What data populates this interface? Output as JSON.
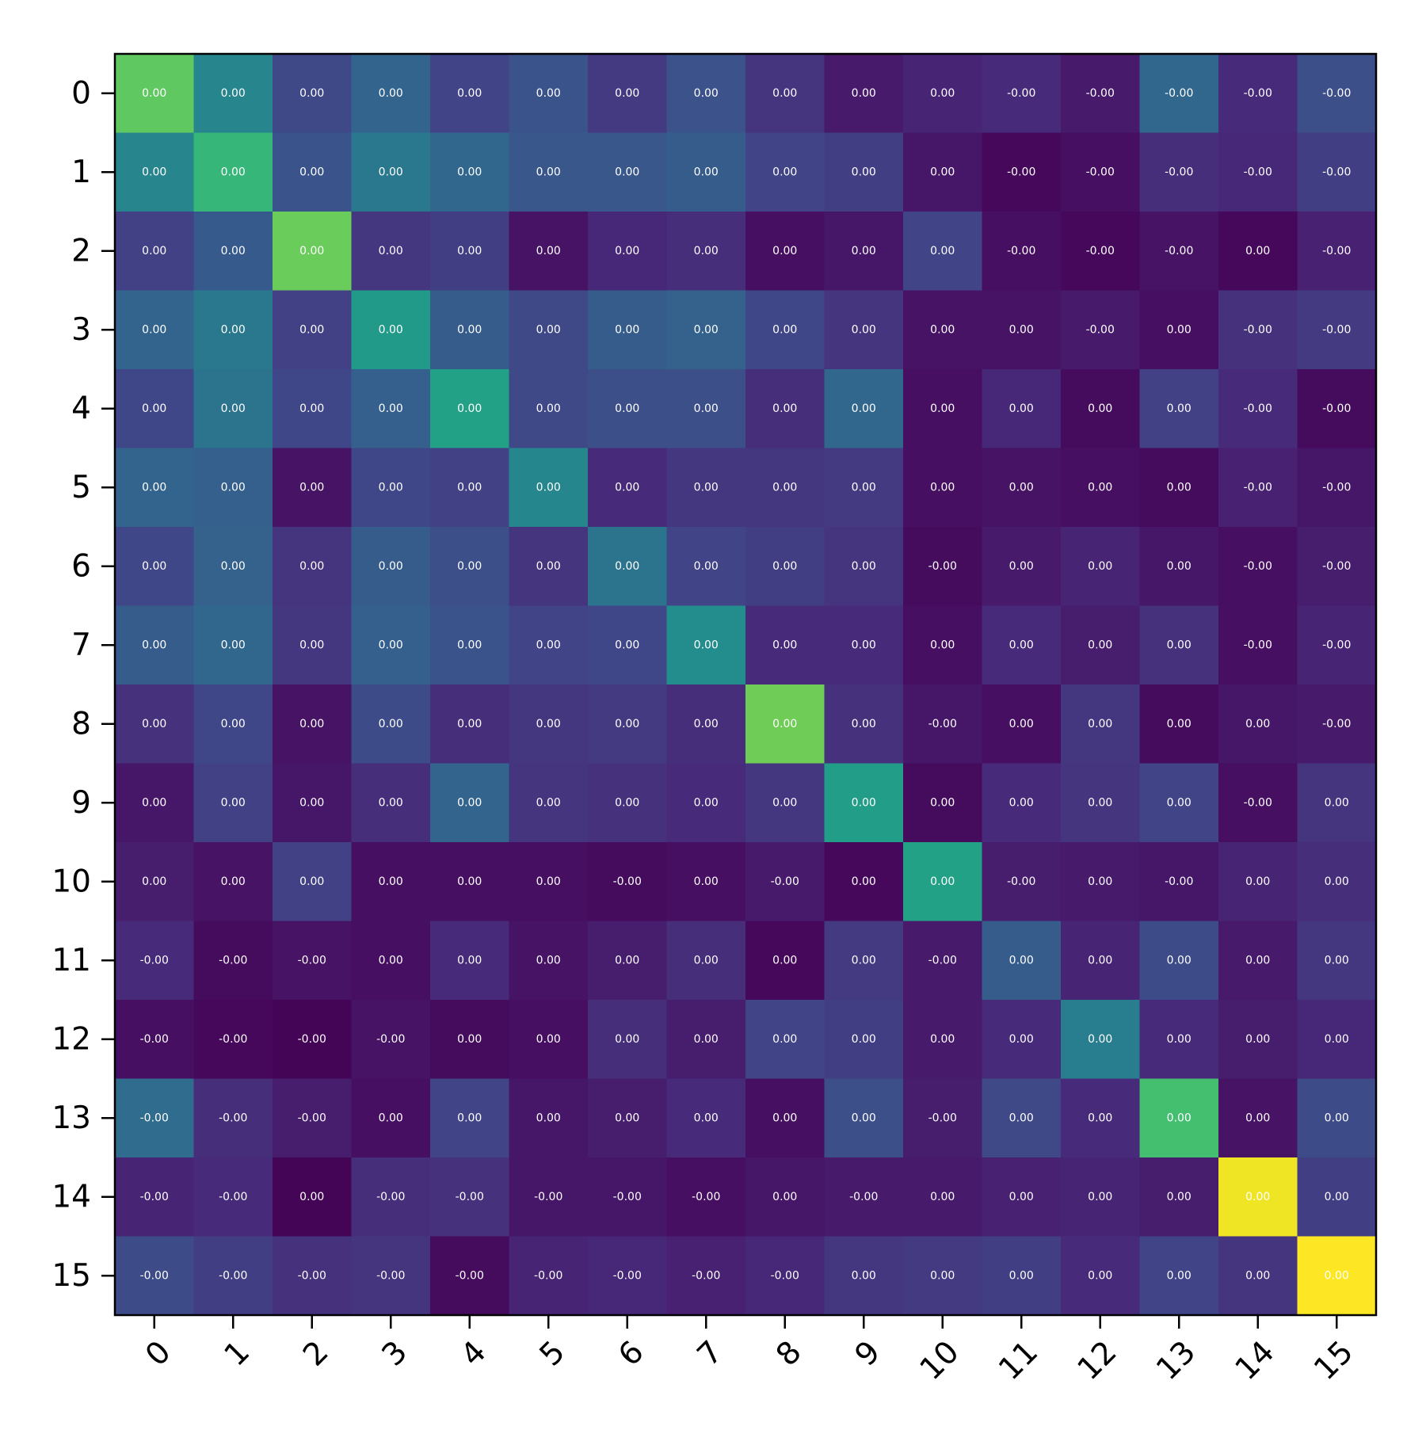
{
  "chart_data": {
    "type": "heatmap",
    "title": "",
    "xlabel": "",
    "ylabel": "",
    "x_tick_labels": [
      "0",
      "1",
      "2",
      "3",
      "4",
      "5",
      "6",
      "7",
      "8",
      "9",
      "10",
      "11",
      "12",
      "13",
      "14",
      "15"
    ],
    "y_tick_labels": [
      "0",
      "1",
      "2",
      "3",
      "4",
      "5",
      "6",
      "7",
      "8",
      "9",
      "10",
      "11",
      "12",
      "13",
      "14",
      "15"
    ],
    "colormap": "viridis",
    "color_scale_note": "cell colors are relative intensity on a 0-1 scale",
    "color_levels": [
      [
        0.75,
        0.45,
        0.22,
        0.32,
        0.2,
        0.26,
        0.17,
        0.25,
        0.15,
        0.07,
        0.1,
        0.12,
        0.07,
        0.33,
        0.12,
        0.24
      ],
      [
        0.45,
        0.66,
        0.26,
        0.4,
        0.33,
        0.27,
        0.27,
        0.29,
        0.2,
        0.18,
        0.06,
        0.02,
        0.04,
        0.13,
        0.11,
        0.18
      ],
      [
        0.19,
        0.28,
        0.77,
        0.16,
        0.18,
        0.05,
        0.11,
        0.13,
        0.04,
        0.06,
        0.2,
        0.04,
        0.02,
        0.05,
        0.02,
        0.09
      ],
      [
        0.32,
        0.4,
        0.19,
        0.54,
        0.29,
        0.22,
        0.29,
        0.31,
        0.21,
        0.15,
        0.05,
        0.05,
        0.07,
        0.04,
        0.14,
        0.17
      ],
      [
        0.21,
        0.38,
        0.21,
        0.3,
        0.57,
        0.22,
        0.24,
        0.24,
        0.13,
        0.33,
        0.04,
        0.11,
        0.03,
        0.19,
        0.12,
        0.03
      ],
      [
        0.32,
        0.3,
        0.05,
        0.21,
        0.19,
        0.46,
        0.12,
        0.16,
        0.16,
        0.17,
        0.04,
        0.05,
        0.04,
        0.03,
        0.09,
        0.06
      ],
      [
        0.21,
        0.31,
        0.15,
        0.29,
        0.24,
        0.15,
        0.38,
        0.2,
        0.18,
        0.15,
        0.03,
        0.07,
        0.1,
        0.06,
        0.04,
        0.08
      ],
      [
        0.29,
        0.33,
        0.16,
        0.3,
        0.26,
        0.2,
        0.21,
        0.48,
        0.12,
        0.12,
        0.04,
        0.12,
        0.08,
        0.14,
        0.04,
        0.1
      ],
      [
        0.14,
        0.21,
        0.05,
        0.23,
        0.13,
        0.16,
        0.17,
        0.13,
        0.78,
        0.14,
        0.06,
        0.04,
        0.16,
        0.03,
        0.06,
        0.07
      ],
      [
        0.06,
        0.19,
        0.06,
        0.13,
        0.32,
        0.15,
        0.14,
        0.12,
        0.16,
        0.55,
        0.03,
        0.12,
        0.15,
        0.2,
        0.04,
        0.15
      ],
      [
        0.08,
        0.05,
        0.19,
        0.04,
        0.04,
        0.04,
        0.03,
        0.04,
        0.07,
        0.02,
        0.57,
        0.08,
        0.07,
        0.06,
        0.1,
        0.13
      ],
      [
        0.12,
        0.03,
        0.05,
        0.04,
        0.12,
        0.05,
        0.08,
        0.13,
        0.02,
        0.17,
        0.07,
        0.29,
        0.1,
        0.23,
        0.07,
        0.16
      ],
      [
        0.04,
        0.02,
        0.01,
        0.05,
        0.03,
        0.04,
        0.13,
        0.08,
        0.2,
        0.18,
        0.07,
        0.12,
        0.42,
        0.12,
        0.08,
        0.11
      ],
      [
        0.35,
        0.13,
        0.08,
        0.04,
        0.2,
        0.06,
        0.08,
        0.12,
        0.04,
        0.24,
        0.08,
        0.22,
        0.12,
        0.7,
        0.05,
        0.23
      ],
      [
        0.1,
        0.12,
        0.01,
        0.13,
        0.14,
        0.06,
        0.06,
        0.04,
        0.06,
        0.07,
        0.07,
        0.09,
        0.1,
        0.08,
        0.98,
        0.18
      ],
      [
        0.23,
        0.18,
        0.14,
        0.15,
        0.03,
        0.1,
        0.11,
        0.09,
        0.11,
        0.16,
        0.17,
        0.18,
        0.12,
        0.2,
        0.15,
        1.0
      ]
    ],
    "cell_labels": [
      [
        "0.00",
        "0.00",
        "0.00",
        "0.00",
        "0.00",
        "0.00",
        "0.00",
        "0.00",
        "0.00",
        "0.00",
        "0.00",
        "-0.00",
        "-0.00",
        "-0.00",
        "-0.00",
        "-0.00"
      ],
      [
        "0.00",
        "0.00",
        "0.00",
        "0.00",
        "0.00",
        "0.00",
        "0.00",
        "0.00",
        "0.00",
        "0.00",
        "0.00",
        "-0.00",
        "-0.00",
        "-0.00",
        "-0.00",
        "-0.00"
      ],
      [
        "0.00",
        "0.00",
        "0.00",
        "0.00",
        "0.00",
        "0.00",
        "0.00",
        "0.00",
        "0.00",
        "0.00",
        "0.00",
        "-0.00",
        "-0.00",
        "-0.00",
        "0.00",
        "-0.00"
      ],
      [
        "0.00",
        "0.00",
        "0.00",
        "0.00",
        "0.00",
        "0.00",
        "0.00",
        "0.00",
        "0.00",
        "0.00",
        "0.00",
        "0.00",
        "-0.00",
        "0.00",
        "-0.00",
        "-0.00"
      ],
      [
        "0.00",
        "0.00",
        "0.00",
        "0.00",
        "0.00",
        "0.00",
        "0.00",
        "0.00",
        "0.00",
        "0.00",
        "0.00",
        "0.00",
        "0.00",
        "0.00",
        "-0.00",
        "-0.00"
      ],
      [
        "0.00",
        "0.00",
        "0.00",
        "0.00",
        "0.00",
        "0.00",
        "0.00",
        "0.00",
        "0.00",
        "0.00",
        "0.00",
        "0.00",
        "0.00",
        "0.00",
        "-0.00",
        "-0.00"
      ],
      [
        "0.00",
        "0.00",
        "0.00",
        "0.00",
        "0.00",
        "0.00",
        "0.00",
        "0.00",
        "0.00",
        "0.00",
        "-0.00",
        "0.00",
        "0.00",
        "0.00",
        "-0.00",
        "-0.00"
      ],
      [
        "0.00",
        "0.00",
        "0.00",
        "0.00",
        "0.00",
        "0.00",
        "0.00",
        "0.00",
        "0.00",
        "0.00",
        "0.00",
        "0.00",
        "0.00",
        "0.00",
        "-0.00",
        "-0.00"
      ],
      [
        "0.00",
        "0.00",
        "0.00",
        "0.00",
        "0.00",
        "0.00",
        "0.00",
        "0.00",
        "0.00",
        "0.00",
        "-0.00",
        "0.00",
        "0.00",
        "0.00",
        "0.00",
        "-0.00"
      ],
      [
        "0.00",
        "0.00",
        "0.00",
        "0.00",
        "0.00",
        "0.00",
        "0.00",
        "0.00",
        "0.00",
        "0.00",
        "0.00",
        "0.00",
        "0.00",
        "0.00",
        "-0.00",
        "0.00"
      ],
      [
        "0.00",
        "0.00",
        "0.00",
        "0.00",
        "0.00",
        "0.00",
        "-0.00",
        "0.00",
        "-0.00",
        "0.00",
        "0.00",
        "-0.00",
        "0.00",
        "-0.00",
        "0.00",
        "0.00"
      ],
      [
        "-0.00",
        "-0.00",
        "-0.00",
        "0.00",
        "0.00",
        "0.00",
        "0.00",
        "0.00",
        "0.00",
        "0.00",
        "-0.00",
        "0.00",
        "0.00",
        "0.00",
        "0.00",
        "0.00"
      ],
      [
        "-0.00",
        "-0.00",
        "-0.00",
        "-0.00",
        "0.00",
        "0.00",
        "0.00",
        "0.00",
        "0.00",
        "0.00",
        "0.00",
        "0.00",
        "0.00",
        "0.00",
        "0.00",
        "0.00"
      ],
      [
        "-0.00",
        "-0.00",
        "-0.00",
        "0.00",
        "0.00",
        "0.00",
        "0.00",
        "0.00",
        "0.00",
        "0.00",
        "-0.00",
        "0.00",
        "0.00",
        "0.00",
        "0.00",
        "0.00"
      ],
      [
        "-0.00",
        "-0.00",
        "0.00",
        "-0.00",
        "-0.00",
        "-0.00",
        "-0.00",
        "-0.00",
        "0.00",
        "-0.00",
        "0.00",
        "0.00",
        "0.00",
        "0.00",
        "0.00",
        "0.00"
      ],
      [
        "-0.00",
        "-0.00",
        "-0.00",
        "-0.00",
        "-0.00",
        "-0.00",
        "-0.00",
        "-0.00",
        "-0.00",
        "0.00",
        "0.00",
        "0.00",
        "0.00",
        "0.00",
        "0.00",
        "0.00"
      ]
    ]
  }
}
